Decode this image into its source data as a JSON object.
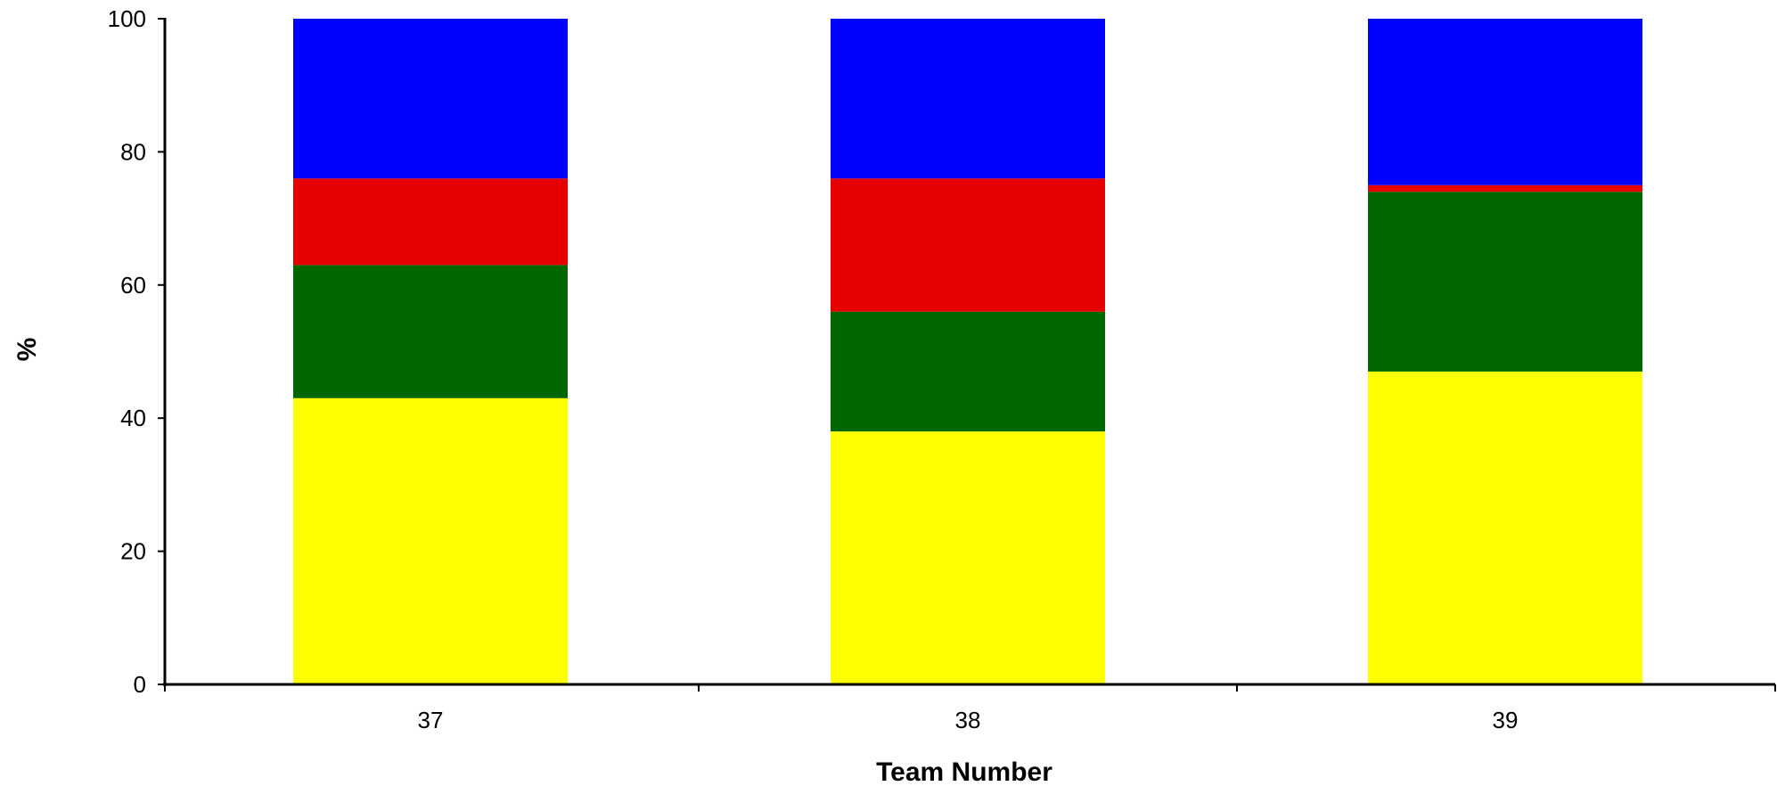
{
  "chart_data": {
    "type": "bar",
    "stacked": true,
    "categories": [
      "37",
      "38",
      "39"
    ],
    "series": [
      {
        "color": "#ffff00",
        "values": [
          43,
          38,
          47
        ]
      },
      {
        "color": "#006600",
        "values": [
          20,
          18,
          27
        ]
      },
      {
        "color": "#e60000",
        "values": [
          13,
          20,
          1
        ]
      },
      {
        "color": "#0000ff",
        "values": [
          24,
          24,
          25
        ]
      }
    ],
    "xlabel": "Team Number",
    "ylabel": "%",
    "ylim": [
      0,
      100
    ],
    "yticks": [
      "0",
      "20",
      "40",
      "60",
      "80",
      "100"
    ],
    "grid": false,
    "legend": "none"
  }
}
